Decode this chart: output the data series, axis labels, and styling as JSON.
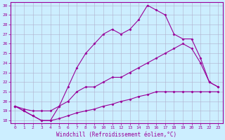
{
  "xlabel": "Windchill (Refroidissement éolien,°C)",
  "bg_color": "#cceeff",
  "grid_color": "#b0b0cc",
  "line_color": "#990099",
  "xlim": [
    -0.5,
    23.5
  ],
  "ylim": [
    17.7,
    30.3
  ],
  "xticks": [
    0,
    1,
    2,
    3,
    4,
    5,
    6,
    7,
    8,
    9,
    10,
    11,
    12,
    13,
    14,
    15,
    16,
    17,
    18,
    19,
    20,
    21,
    22,
    23
  ],
  "yticks": [
    18,
    19,
    20,
    21,
    22,
    23,
    24,
    25,
    26,
    27,
    28,
    29,
    30
  ],
  "line1_x": [
    0,
    1,
    2,
    3,
    4,
    5,
    6,
    7,
    8,
    9,
    10,
    11,
    12,
    13,
    14,
    15,
    16,
    17,
    18,
    19,
    20,
    21,
    22,
    23
  ],
  "line1_y": [
    19.5,
    19.0,
    18.5,
    18.0,
    18.0,
    18.2,
    18.5,
    18.8,
    19.0,
    19.2,
    19.5,
    19.7,
    20.0,
    20.2,
    20.5,
    20.7,
    21.0,
    21.0,
    21.0,
    21.0,
    21.0,
    21.0,
    21.0,
    21.0
  ],
  "line2_x": [
    0,
    1,
    2,
    3,
    4,
    5,
    6,
    7,
    8,
    9,
    10,
    11,
    12,
    13,
    14,
    15,
    16,
    17,
    18,
    19,
    20,
    21,
    22,
    23
  ],
  "line2_y": [
    19.5,
    19.2,
    19.0,
    19.0,
    19.0,
    19.5,
    20.0,
    21.0,
    21.5,
    21.5,
    22.0,
    22.5,
    22.5,
    23.0,
    23.5,
    24.0,
    24.5,
    25.0,
    25.5,
    26.0,
    25.5,
    24.0,
    22.0,
    21.5
  ],
  "line3_x": [
    0,
    1,
    2,
    3,
    4,
    5,
    6,
    7,
    8,
    9,
    10,
    11,
    12,
    13,
    14,
    15,
    16,
    17,
    18,
    19,
    20,
    21,
    22,
    23
  ],
  "line3_y": [
    19.5,
    19.0,
    18.5,
    18.0,
    18.0,
    19.5,
    21.5,
    23.5,
    25.0,
    26.0,
    27.0,
    27.5,
    27.0,
    27.5,
    28.5,
    30.0,
    29.5,
    29.0,
    27.0,
    26.5,
    26.5,
    24.5,
    22.0,
    21.5
  ]
}
